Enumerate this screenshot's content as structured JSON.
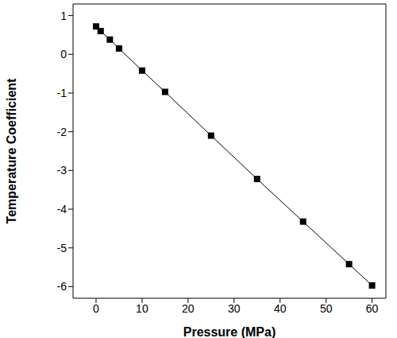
{
  "chart_data": {
    "type": "scatter",
    "x_label": "Pressure (MPa)",
    "y_label": "Temperature Coefficient",
    "x": [
      0,
      1,
      3,
      5,
      10,
      15,
      25,
      35,
      45,
      55,
      60
    ],
    "values": [
      0.72,
      0.6,
      0.38,
      0.15,
      -0.42,
      -0.97,
      -2.1,
      -3.22,
      -4.32,
      -5.42,
      -5.97
    ],
    "color": "#000000",
    "marker": "square",
    "line_style": "solid",
    "xlim": [
      -5,
      63
    ],
    "xticks": [
      0,
      10,
      20,
      30,
      40,
      50,
      60
    ],
    "ylim": [
      -6.3,
      1.3
    ],
    "yticks": [
      -6,
      -5,
      -4,
      -3,
      -2,
      -1,
      0,
      1
    ],
    "grid": false
  }
}
